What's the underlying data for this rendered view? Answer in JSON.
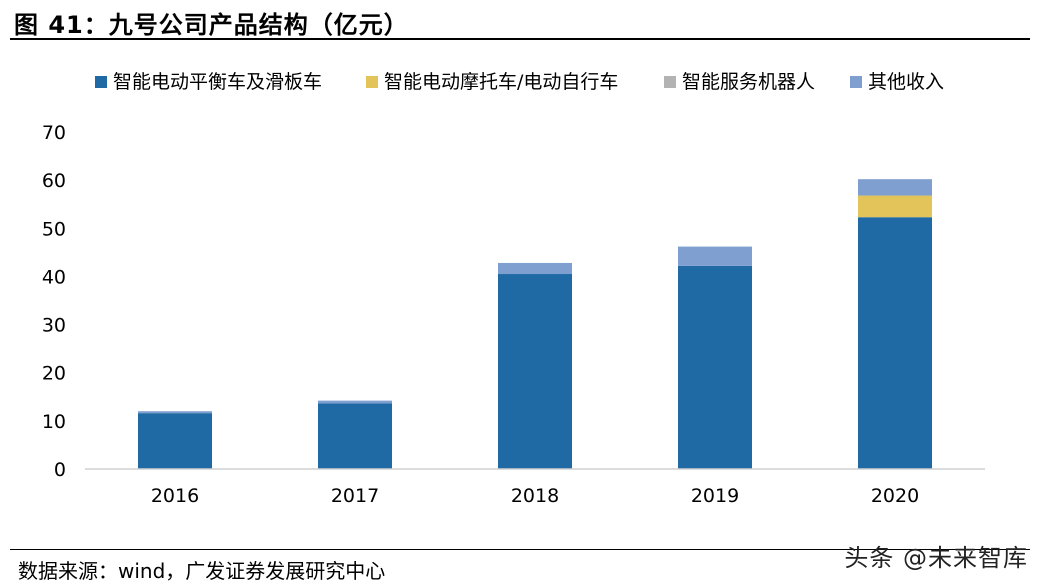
{
  "title": "图 41：九号公司产品结构（亿元）",
  "source": "数据来源：wind，广发证券发展研究中心",
  "watermark": "头条 @未来智库",
  "chart_data": {
    "type": "bar",
    "stacked": true,
    "categories": [
      "2016",
      "2017",
      "2018",
      "2019",
      "2020"
    ],
    "series": [
      {
        "name": "智能电动平衡车及滑板车",
        "color": "#1f6aa5",
        "values": [
          11.6,
          13.6,
          40.5,
          42.2,
          52.3
        ]
      },
      {
        "name": "智能电动摩托车/电动自行车",
        "color": "#e2c45a",
        "values": [
          0,
          0,
          0,
          0,
          4.5
        ]
      },
      {
        "name": "智能服务机器人",
        "color": "#b3b3b3",
        "values": [
          0,
          0,
          0,
          0,
          0
        ]
      },
      {
        "name": "其他收入",
        "color": "#7e9fcf",
        "values": [
          0.4,
          0.6,
          2.3,
          4.0,
          3.4
        ]
      }
    ],
    "yticks": [
      0,
      10,
      20,
      30,
      40,
      50,
      60,
      70
    ],
    "ylim": [
      0,
      70
    ],
    "legend_position": "top",
    "grid": false
  }
}
